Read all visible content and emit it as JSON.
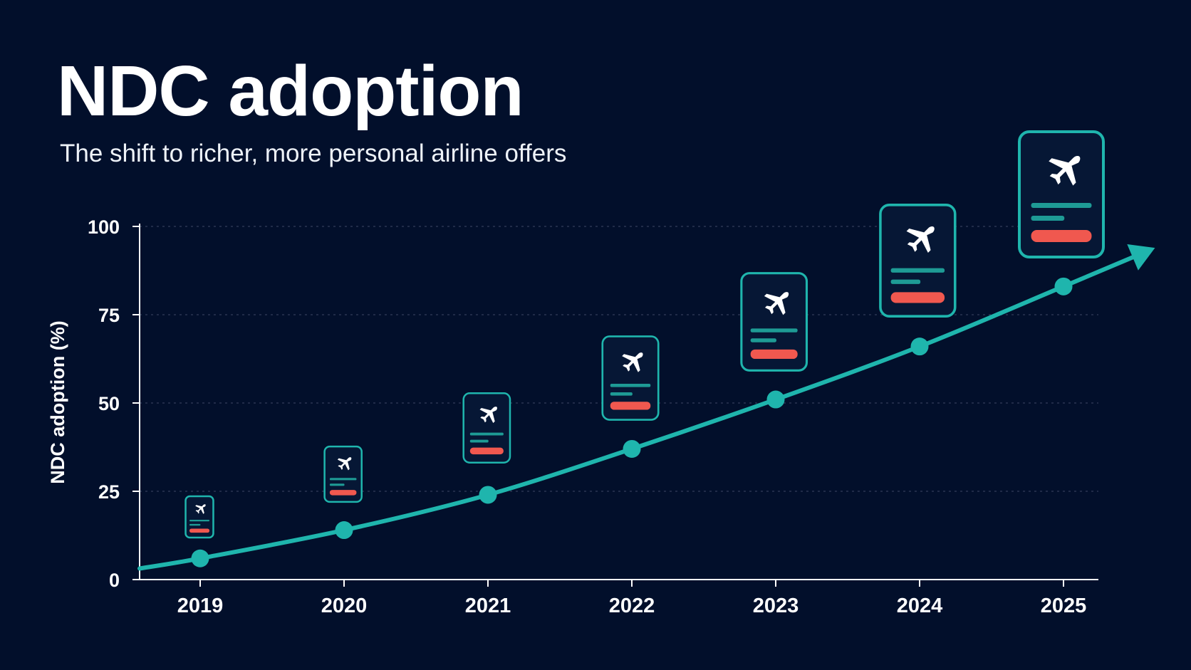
{
  "title": "NDC adoption",
  "subtitle": "The shift to richer, more personal airline offers",
  "colors": {
    "background": "#020f2b",
    "line": "#1fb5ad",
    "card_border": "#1fb5ad",
    "card_bar_teal": "#1e9b95",
    "card_bar_red": "#f0584f",
    "grid": "#2a3552"
  },
  "card_icon": "airplane-icon",
  "chart_data": {
    "type": "line",
    "x": [
      "2019",
      "2020",
      "2021",
      "2022",
      "2023",
      "2024",
      "2025"
    ],
    "series": [
      {
        "values": [
          6,
          14,
          24,
          37,
          51,
          66,
          83
        ]
      }
    ],
    "xlabel": "",
    "ylabel": "NDC adoption (%)",
    "ylim": [
      0,
      100
    ],
    "yticks": [
      "0",
      "25",
      "50",
      "75",
      "100"
    ],
    "grid": true,
    "trend_arrow": true
  }
}
